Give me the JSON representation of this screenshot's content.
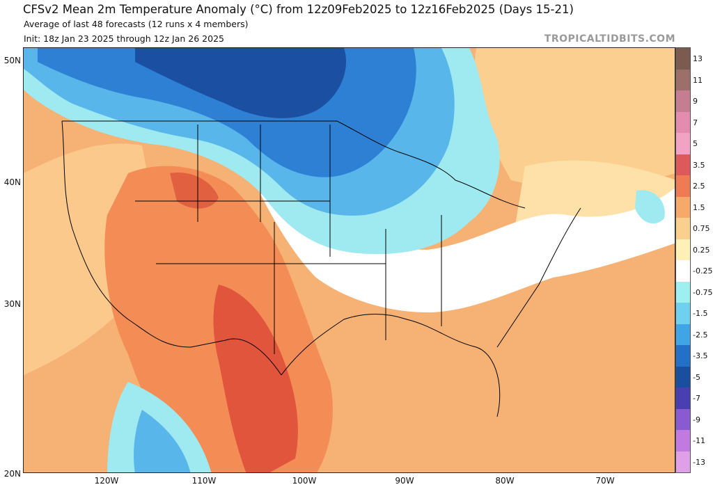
{
  "header": {
    "title": "CFSv2 Mean 2m Temperature Anomaly (°C) from 12z09Feb2025 to 12z16Feb2025 (Days 15-21)",
    "subtitle": "Average of last 48 forecasts (12 runs x 4 members)",
    "init": "Init: 18z Jan 23 2025 through 12z Jan 26 2025",
    "brand": "TROPICALTIDBITS.COM"
  },
  "map": {
    "lat_labels": [
      "50N",
      "40N",
      "30N",
      "20N"
    ],
    "lon_labels": [
      "120W",
      "110W",
      "100W",
      "90W",
      "80W",
      "70W"
    ],
    "ocean_color": "#f5ad6f",
    "land_border_color": "#000000"
  },
  "colorbar": {
    "labels": [
      "13",
      "11",
      "9",
      "7",
      "5",
      "3.5",
      "2.5",
      "1.5",
      "0.75",
      "0.25",
      "-0.25",
      "-0.75",
      "-1.5",
      "-2.5",
      "-3.5",
      "-5",
      "-7",
      "-9",
      "-11",
      "-13"
    ],
    "colors": [
      "#7b5b50",
      "#9c6f6a",
      "#c47d91",
      "#e48cb0",
      "#f2a3c4",
      "#de5a5a",
      "#ee7b53",
      "#f7a96a",
      "#fbcf8d",
      "#fff0b8",
      "#ffffff",
      "#9ef0f0",
      "#6fd0f0",
      "#3fa5e6",
      "#2270c8",
      "#1a4fa0",
      "#4a3fb0",
      "#8a5ad0",
      "#c07ae0",
      "#e0a0e8"
    ]
  }
}
